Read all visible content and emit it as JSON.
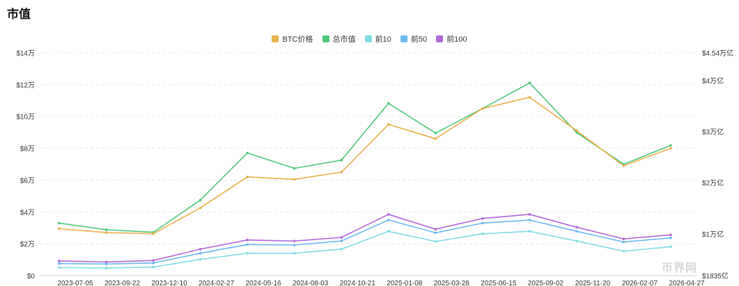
{
  "page": {
    "title": "市值"
  },
  "watermark": "币界网",
  "chart_data": {
    "type": "line",
    "legend_position": "top-center",
    "grid": true,
    "x": [
      "2023-07-05",
      "2023-09-22",
      "2023-12-10",
      "2024-02-27",
      "2024-05-16",
      "2024-08-03",
      "2024-10-21",
      "2025-01-08",
      "2025-03-28",
      "2025-06-15",
      "2025-09-02",
      "2025-11-20",
      "2026-02-07",
      "2026-04-27"
    ],
    "x_ticks": [
      "2023-07-05",
      "2023-09-22",
      "2023-12-10",
      "2024-02-27",
      "2024-05-16",
      "2024-08-03",
      "2024-10-21",
      "2025-01-08",
      "2025-03-28",
      "2025-06-15",
      "2025-09-02",
      "2025-11-20",
      "2026-02-07",
      "2026-04-27"
    ],
    "y_left": {
      "ticks": [
        "$0",
        "$2万",
        "$4万",
        "$6万",
        "$8万",
        "$10万",
        "$12万",
        "$14万"
      ],
      "ylim": [
        0,
        140000
      ]
    },
    "y_right": {
      "ticks": [
        "$1835亿",
        "$1万亿",
        "$2万亿",
        "$3万亿",
        "$4万亿",
        "$4.54万亿"
      ],
      "tick_values": [
        0.1835,
        1,
        2,
        3,
        4,
        4.54
      ],
      "ylim": [
        0.1835,
        4.54
      ]
    },
    "series": [
      {
        "name": "BTC价格",
        "axis": "left",
        "color": "#E8B04A",
        "values": [
          29500,
          27000,
          26300,
          42500,
          62000,
          60500,
          65000,
          95000,
          86000,
          105000,
          112000,
          91000,
          69000,
          80000
        ]
      },
      {
        "name": "总市值",
        "axis": "right",
        "color": "#4CC77A",
        "values": [
          1.21,
          1.08,
          1.03,
          1.66,
          2.58,
          2.28,
          2.44,
          3.55,
          2.97,
          3.45,
          3.95,
          2.98,
          2.36,
          2.73
        ]
      },
      {
        "name": "前10",
        "axis": "right",
        "color": "#7FDCE3",
        "values": [
          0.34,
          0.33,
          0.35,
          0.5,
          0.62,
          0.62,
          0.7,
          1.05,
          0.85,
          1.0,
          1.05,
          0.86,
          0.66,
          0.75
        ]
      },
      {
        "name": "前50",
        "axis": "right",
        "color": "#6BB8F0",
        "values": [
          0.42,
          0.41,
          0.43,
          0.62,
          0.79,
          0.78,
          0.86,
          1.27,
          1.02,
          1.21,
          1.27,
          1.05,
          0.84,
          0.92
        ]
      },
      {
        "name": "前100",
        "axis": "right",
        "color": "#B066D8",
        "values": [
          0.47,
          0.45,
          0.48,
          0.7,
          0.88,
          0.86,
          0.93,
          1.38,
          1.09,
          1.3,
          1.38,
          1.13,
          0.9,
          0.98
        ]
      }
    ]
  }
}
